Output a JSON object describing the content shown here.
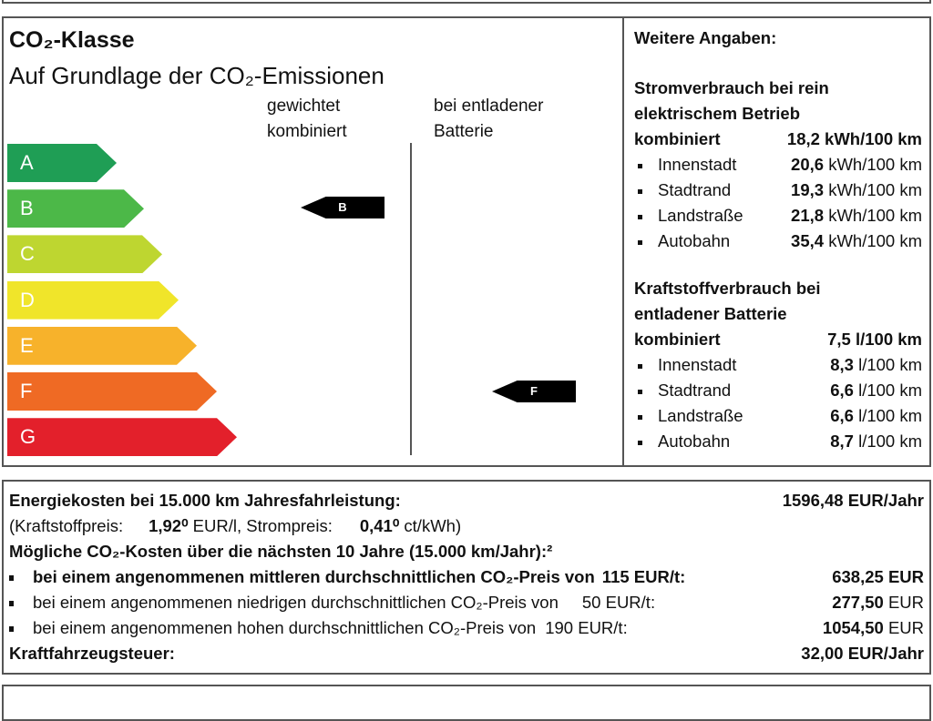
{
  "label": {
    "title": "CO₂-Klasse",
    "subtitle": "Auf Grundlage der CO₂-Emissionen",
    "col_weighted": [
      "gewichtet",
      "kombiniert"
    ],
    "col_discharged": [
      "bei entladener",
      "Batterie"
    ],
    "classes": [
      {
        "label": "A",
        "color": "#1f9e55"
      },
      {
        "label": "B",
        "color": "#4cb848"
      },
      {
        "label": "C",
        "color": "#bed630"
      },
      {
        "label": "D",
        "color": "#f0e52a"
      },
      {
        "label": "E",
        "color": "#f7b22b"
      },
      {
        "label": "F",
        "color": "#ef6a24"
      },
      {
        "label": "G",
        "color": "#e3202b"
      }
    ],
    "weighted_class": "B",
    "discharged_class": "F"
  },
  "info": {
    "heading": "Weitere Angaben:",
    "electric": {
      "title": [
        "Stromverbrauch bei rein",
        "elektrischem Betrieb"
      ],
      "combined_label": "kombiniert",
      "combined_value": "18,2 kWh/100 km",
      "items": [
        {
          "label": "Innenstadt",
          "value": "20,6",
          "unit": "kWh/100 km"
        },
        {
          "label": "Stadtrand",
          "value": "19,3",
          "unit": "kWh/100 km"
        },
        {
          "label": "Landstraße",
          "value": "21,8",
          "unit": "kWh/100 km"
        },
        {
          "label": "Autobahn",
          "value": "35,4",
          "unit": "kWh/100 km"
        }
      ]
    },
    "fuel": {
      "title": [
        "Kraftstoffverbrauch bei",
        "entladener Batterie"
      ],
      "combined_label": "kombiniert",
      "combined_value": "7,5 l/100 km",
      "items": [
        {
          "label": "Innenstadt",
          "value": "8,3",
          "unit": "l/100 km"
        },
        {
          "label": "Stadtrand",
          "value": "6,6",
          "unit": "l/100 km"
        },
        {
          "label": "Landstraße",
          "value": "6,6",
          "unit": "l/100 km"
        },
        {
          "label": "Autobahn",
          "value": "8,7",
          "unit": "l/100 km"
        }
      ]
    }
  },
  "costs": {
    "energy_label": "Energiekosten bei 15.000 km Jahresfahrleistung:",
    "energy_value": "1596,48 EUR/Jahr",
    "fuel_price_label": "(Kraftstoffpreis:",
    "fuel_price": "1,92⁰",
    "fuel_unit": "EUR/l, Strompreis:",
    "power_price": "0,41⁰",
    "power_unit": "ct/kWh)",
    "co2_heading": "Mögliche CO₂-Kosten über die nächsten 10 Jahre (15.000 km/Jahr):²",
    "scenarios": [
      {
        "text": "bei einem angenommenen mittleren durchschnittlichen CO₂-Preis von",
        "price": "115",
        "unit": "EUR/t:",
        "value": "638,25",
        "currency": "EUR"
      },
      {
        "text": "bei einem angenommenen niedrigen durchschnittlichen CO₂-Preis von",
        "price": "50",
        "unit": "EUR/t:",
        "value": "277,50",
        "currency": "EUR"
      },
      {
        "text": "bei einem angenommenen hohen durchschnittlichen CO₂-Preis von",
        "price": "190",
        "unit": "EUR/t:",
        "value": "1054,50",
        "currency": "EUR"
      }
    ],
    "tax_label": "Kraftfahrzeugsteuer:",
    "tax_value": "32,00 EUR/Jahr"
  }
}
